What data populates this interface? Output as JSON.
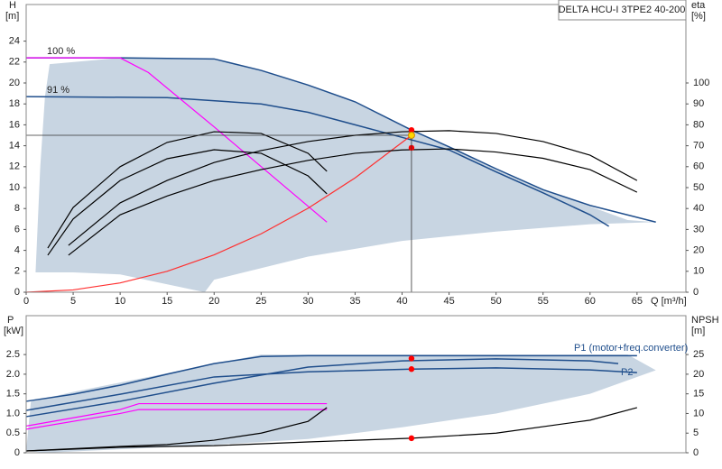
{
  "chart_data": [
    {
      "type": "line",
      "title": "DELTA HCU-I 3TPE2 40-200",
      "ylabel": [
        "H",
        "[m]"
      ],
      "y2label": [
        "eta",
        "[%]"
      ],
      "xlabel": "Q [m³/h]",
      "xlim": [
        0,
        70.2
      ],
      "xticks": [
        0,
        5,
        10,
        15,
        20,
        25,
        30,
        35,
        40,
        45,
        50,
        55,
        60,
        65
      ],
      "ylim": [
        0,
        27.5
      ],
      "yticks": [
        0,
        2,
        4,
        6,
        8,
        10,
        12,
        14,
        16,
        18,
        20,
        22,
        24
      ],
      "y2lim": [
        0,
        137.5
      ],
      "y2ticks": [
        0,
        10,
        20,
        30,
        40,
        50,
        60,
        70,
        80,
        90,
        100
      ],
      "operating_point": {
        "x": 41,
        "y": 15.0,
        "color": "#ffd700"
      },
      "series": [
        {
          "kind": "area",
          "color": "#c8d5e2",
          "x": [
            1,
            1.5,
            2,
            2.5,
            10,
            20,
            25,
            30,
            35,
            40,
            45,
            50,
            55,
            60,
            64,
            67,
            60,
            50,
            40,
            30,
            20,
            19,
            10,
            5,
            1
          ],
          "values": [
            1.9,
            12,
            18.7,
            21.8,
            22.4,
            22.3,
            21.2,
            19.8,
            18.2,
            16,
            13.9,
            11.8,
            9.8,
            8.2,
            6.9,
            6.7,
            6.5,
            5.8,
            4.9,
            3.4,
            1.2,
            0,
            1.7,
            1.9,
            1.9
          ]
        },
        {
          "kind": "line",
          "name": "100 %",
          "color": "#1f4e8c",
          "x": [
            0,
            10,
            20,
            25,
            30,
            35,
            41,
            45,
            50,
            55,
            60,
            67
          ],
          "values": [
            22.4,
            22.4,
            22.3,
            21.2,
            19.8,
            18.2,
            15.5,
            13.9,
            11.8,
            9.8,
            8.3,
            6.7
          ]
        },
        {
          "kind": "line",
          "name": "91 %",
          "color": "#1f4e8c",
          "x": [
            0,
            15,
            25,
            30,
            35,
            40,
            45,
            50,
            55,
            60,
            62
          ],
          "values": [
            18.7,
            18.6,
            18.0,
            17.2,
            16.0,
            14.8,
            13.6,
            11.5,
            9.5,
            7.4,
            6.3
          ]
        },
        {
          "kind": "line",
          "color": "#ff00ff",
          "x": [
            0,
            10,
            13,
            20,
            32
          ],
          "values": [
            22.4,
            22.4,
            21.0,
            15.8,
            6.7
          ]
        },
        {
          "kind": "line",
          "color": "#ff3030",
          "x": [
            0,
            5,
            10,
            15,
            20,
            25,
            30,
            35,
            41
          ],
          "values": [
            0,
            0.22,
            0.89,
            2.0,
            3.57,
            5.58,
            8.03,
            10.93,
            15.0
          ]
        },
        {
          "kind": "line",
          "axis": "y2",
          "color": "#000000",
          "x": [
            4.5,
            10,
            15,
            20,
            25,
            30,
            35,
            40,
            45,
            50,
            55,
            60,
            65
          ],
          "values": [
            17.7,
            37,
            46,
            53.4,
            58.6,
            63,
            66.4,
            68,
            68.5,
            67,
            64,
            58.6,
            47.8
          ]
        },
        {
          "kind": "line",
          "axis": "y2",
          "color": "#000000",
          "x": [
            4.5,
            10,
            15,
            20,
            25,
            30,
            35,
            40,
            45,
            50,
            55,
            60,
            65
          ],
          "values": [
            22.4,
            42.7,
            53.4,
            62,
            67.7,
            72,
            75,
            76.7,
            77.2,
            75.9,
            72,
            65.5,
            53.4
          ]
        },
        {
          "kind": "line",
          "axis": "y2",
          "color": "#000000",
          "x": [
            2.3,
            5,
            10,
            15,
            20,
            25,
            30,
            32
          ],
          "values": [
            17.7,
            35,
            53.4,
            63.8,
            68.1,
            66.4,
            55.6,
            47
          ]
        },
        {
          "kind": "line",
          "axis": "y2",
          "color": "#000000",
          "x": [
            2.3,
            5,
            10,
            15,
            20,
            25,
            30,
            32
          ],
          "values": [
            21.1,
            40.5,
            60,
            71.6,
            76.7,
            75.9,
            66.4,
            57.8
          ]
        },
        {
          "kind": "points",
          "color": "#ff0000",
          "x": [
            41,
            41
          ],
          "values": [
            15.5,
            13.8
          ]
        }
      ]
    },
    {
      "type": "line",
      "ylabel": [
        "P",
        "[kW]"
      ],
      "y2label": [
        "NPSH",
        "[m]"
      ],
      "xlim": [
        0,
        70.2
      ],
      "ylim": [
        0,
        3.49
      ],
      "yticks": [
        0,
        0.5,
        {
          "value": 1.0,
          "label": "1.0"
        },
        1.5,
        {
          "value": 2.0,
          "label": "2.0"
        },
        2.5
      ],
      "y2lim": [
        0,
        34.9
      ],
      "y2ticks": [
        0,
        5,
        10,
        15,
        20,
        25
      ],
      "series": [
        {
          "kind": "area",
          "color": "#c8d5e2",
          "x": [
            0,
            0.5,
            5,
            25,
            64,
            67,
            60,
            50,
            40,
            30,
            20,
            2,
            0
          ],
          "values": [
            0.05,
            1.3,
            1.55,
            2.5,
            2.5,
            2.1,
            1.5,
            1.0,
            0.65,
            0.35,
            0.2,
            0,
            0.05
          ]
        },
        {
          "kind": "line",
          "name": "P1 (motor+freq.converter)",
          "color": "#1f4e8c",
          "x": [
            0,
            5,
            10,
            15,
            20,
            25,
            30,
            41,
            50,
            60,
            65
          ],
          "values": [
            1.31,
            1.49,
            1.72,
            2.0,
            2.27,
            2.45,
            2.47,
            2.47,
            2.47,
            2.47,
            2.47
          ]
        },
        {
          "kind": "line",
          "name": "P2",
          "color": "#1f4e8c",
          "x": [
            0,
            10,
            20,
            30,
            41,
            50,
            60,
            65
          ],
          "values": [
            1.08,
            1.49,
            1.93,
            2.06,
            2.13,
            2.16,
            2.11,
            2.04
          ]
        },
        {
          "kind": "line",
          "color": "#1f4e8c",
          "x": [
            0,
            10,
            20,
            30,
            40,
            50,
            60,
            63
          ],
          "values": [
            0.92,
            1.31,
            1.77,
            2.18,
            2.34,
            2.39,
            2.34,
            2.27
          ]
        },
        {
          "kind": "line",
          "color": "#ff00ff",
          "x": [
            0,
            10,
            12,
            32
          ],
          "values": [
            0.68,
            1.1,
            1.25,
            1.25
          ]
        },
        {
          "kind": "line",
          "color": "#ff00ff",
          "x": [
            0,
            10,
            12,
            32
          ],
          "values": [
            0.6,
            1.0,
            1.1,
            1.1
          ]
        },
        {
          "kind": "line",
          "axis": "y2",
          "color": "#000000",
          "x": [
            0,
            10,
            20,
            30,
            41,
            50,
            60,
            65
          ],
          "values": [
            0.46,
            1.4,
            1.8,
            2.75,
            3.7,
            5,
            8.3,
            11.5
          ]
        },
        {
          "kind": "line",
          "axis": "y2",
          "color": "#000000",
          "x": [
            0,
            10,
            15,
            20,
            25,
            30,
            32
          ],
          "values": [
            0.46,
            1.6,
            2.1,
            3.2,
            5,
            8,
            11.5
          ]
        },
        {
          "kind": "points",
          "color": "#ff0000",
          "x": [
            41,
            41
          ],
          "values": [
            2.4,
            2.13
          ]
        },
        {
          "kind": "points",
          "axis": "y2",
          "color": "#ff0000",
          "x": [
            41
          ],
          "values": [
            3.7
          ]
        }
      ]
    }
  ]
}
